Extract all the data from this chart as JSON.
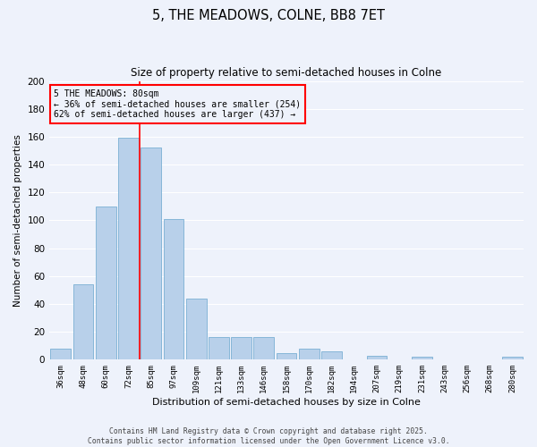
{
  "title": "5, THE MEADOWS, COLNE, BB8 7ET",
  "subtitle": "Size of property relative to semi-detached houses in Colne",
  "xlabel": "Distribution of semi-detached houses by size in Colne",
  "ylabel": "Number of semi-detached properties",
  "bar_labels": [
    "36sqm",
    "48sqm",
    "60sqm",
    "72sqm",
    "85sqm",
    "97sqm",
    "109sqm",
    "121sqm",
    "133sqm",
    "146sqm",
    "158sqm",
    "170sqm",
    "182sqm",
    "194sqm",
    "207sqm",
    "219sqm",
    "231sqm",
    "243sqm",
    "256sqm",
    "268sqm",
    "280sqm"
  ],
  "bar_values": [
    8,
    54,
    110,
    159,
    152,
    101,
    44,
    16,
    16,
    16,
    5,
    8,
    6,
    0,
    3,
    0,
    2,
    0,
    0,
    0,
    2
  ],
  "bar_color": "#b8d0ea",
  "bar_edge_color": "#7aafd4",
  "vline_color": "red",
  "annotation_title": "5 THE MEADOWS: 80sqm",
  "annotation_line1": "← 36% of semi-detached houses are smaller (254)",
  "annotation_line2": "62% of semi-detached houses are larger (437) →",
  "annotation_box_color": "red",
  "ylim": [
    0,
    200
  ],
  "yticks": [
    0,
    20,
    40,
    60,
    80,
    100,
    120,
    140,
    160,
    180,
    200
  ],
  "footer_line1": "Contains HM Land Registry data © Crown copyright and database right 2025.",
  "footer_line2": "Contains public sector information licensed under the Open Government Licence v3.0.",
  "bg_color": "#eef2fb",
  "grid_color": "#ffffff"
}
